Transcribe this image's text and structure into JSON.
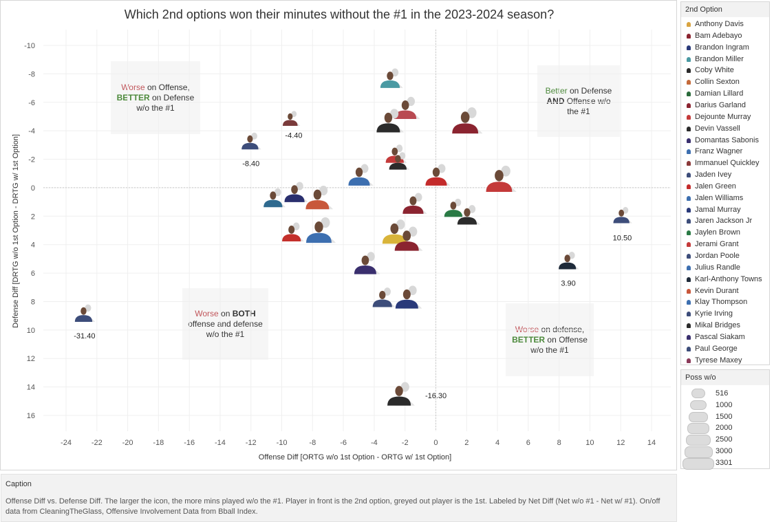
{
  "title": "Which 2nd options won their minutes without the #1 in the 2023-2024 season?",
  "chart_data": {
    "type": "scatter",
    "title": "Which 2nd options won their minutes without the #1 in the 2023-2024 season?",
    "xlabel": "Offense Diff [ORTG w/o 1st Option - ORTG w/ 1st Option]",
    "ylabel": "Defense Diff [DRTG w/o 1st Option - DRTG w/ 1st Option]",
    "xlim": [
      -24,
      14
    ],
    "ylim": [
      -10,
      16
    ],
    "y_reversed": true,
    "x_ticks": [
      -24,
      -22,
      -20,
      -18,
      -16,
      -14,
      -12,
      -10,
      -8,
      -6,
      -4,
      -2,
      0,
      2,
      4,
      6,
      8,
      10,
      12,
      14
    ],
    "y_ticks": [
      -10,
      -8,
      -6,
      -4,
      -2,
      0,
      2,
      4,
      6,
      8,
      10,
      12,
      14,
      16
    ],
    "grid": true,
    "marker": "player-headshot-icon",
    "points": [
      {
        "x": -2.9,
        "y": -7.6,
        "size": 1200,
        "color": "#4a9aa3"
      },
      {
        "x": -9.4,
        "y": -4.8,
        "size": 516,
        "color": "#7a3b3b",
        "label": "-4.40"
      },
      {
        "x": -12.0,
        "y": -3.2,
        "size": 800,
        "color": "#3d4d7a",
        "label": "-8.40"
      },
      {
        "x": -1.9,
        "y": -5.5,
        "size": 1600,
        "color": "#b94a52"
      },
      {
        "x": -3.0,
        "y": -4.6,
        "size": 1800,
        "color": "#2b2b2b"
      },
      {
        "x": 2.0,
        "y": -4.6,
        "size": 2200,
        "color": "#8b2430"
      },
      {
        "x": -2.6,
        "y": -2.3,
        "size": 1000,
        "color": "#c43a3a"
      },
      {
        "x": -2.4,
        "y": -1.8,
        "size": 900,
        "color": "#2b2b2b"
      },
      {
        "x": -4.9,
        "y": -0.8,
        "size": 1500,
        "color": "#3d6fb0"
      },
      {
        "x": 0.1,
        "y": -0.8,
        "size": 1500,
        "color": "#c42b2b"
      },
      {
        "x": 4.2,
        "y": -0.5,
        "size": 2200,
        "color": "#c43a3a"
      },
      {
        "x": -10.5,
        "y": 0.8,
        "size": 1100,
        "color": "#2f6a8f"
      },
      {
        "x": -9.1,
        "y": 0.4,
        "size": 1300,
        "color": "#2a2f6e"
      },
      {
        "x": -7.6,
        "y": 0.8,
        "size": 1800,
        "color": "#c8573a"
      },
      {
        "x": -1.4,
        "y": 1.2,
        "size": 1400,
        "color": "#8b2430"
      },
      {
        "x": 1.2,
        "y": 1.5,
        "size": 1000,
        "color": "#2a7a45"
      },
      {
        "x": 2.1,
        "y": 2.0,
        "size": 1200,
        "color": "#2b2b2b"
      },
      {
        "x": 12.1,
        "y": 2.0,
        "size": 700,
        "color": "#3d4d7a",
        "label": "10.50"
      },
      {
        "x": -9.3,
        "y": 3.2,
        "size": 1100,
        "color": "#c4302b"
      },
      {
        "x": -7.5,
        "y": 3.1,
        "size": 2100,
        "color": "#3d6fb0"
      },
      {
        "x": -2.6,
        "y": 3.2,
        "size": 1900,
        "color": "#d9b43a"
      },
      {
        "x": -1.8,
        "y": 3.7,
        "size": 1900,
        "color": "#8b2430"
      },
      {
        "x": 8.6,
        "y": 5.2,
        "size": 900,
        "color": "#1f2b3a",
        "label": "3.90"
      },
      {
        "x": -4.5,
        "y": 5.4,
        "size": 1600,
        "color": "#3a2f6e"
      },
      {
        "x": -3.4,
        "y": 7.8,
        "size": 1200,
        "color": "#3d4d7a"
      },
      {
        "x": -1.8,
        "y": 7.8,
        "size": 1700,
        "color": "#2a3a7a"
      },
      {
        "x": -22.8,
        "y": 8.9,
        "size": 900,
        "color": "#3d4d7a",
        "label": "-31.40"
      },
      {
        "x": -2.3,
        "y": 14.6,
        "size": 1800,
        "color": "#2b2b2b",
        "label": "-16.30"
      }
    ]
  },
  "quadrants": {
    "top_left": {
      "line1_worse": "Worse",
      "line1_rest": " on Offense,",
      "line2_better": "BETTER",
      "line2_rest": " on Defense",
      "line3": "w/o the #1"
    },
    "top_right": {
      "line1_better": "Better",
      "line1_rest": " on Defense",
      "line2_bold": "AND",
      "line2_rest": " Offense w/o",
      "line3": "the #1"
    },
    "bottom_left": {
      "line1_worse": "Worse",
      "line1_mid": " on ",
      "line1_bold": "BOTH",
      "line2": "offense and defense",
      "line3": "w/o the #1"
    },
    "bottom_right": {
      "line1_worse": "Worse",
      "line1_rest": " on defense,",
      "line2_better": "BETTER",
      "line2_rest": " on Offense",
      "line3": "w/o the #1"
    }
  },
  "legend": {
    "title": "2nd Option",
    "items": [
      {
        "name": "Anthony Davis",
        "color": "#d9a441"
      },
      {
        "name": "Bam Adebayo",
        "color": "#8b2430"
      },
      {
        "name": "Brandon Ingram",
        "color": "#2a3a7a"
      },
      {
        "name": "Brandon Miller",
        "color": "#4a9aa3"
      },
      {
        "name": "Coby White",
        "color": "#2b2b2b"
      },
      {
        "name": "Collin Sexton",
        "color": "#c46a3a"
      },
      {
        "name": "Damian Lillard",
        "color": "#2a6a3a"
      },
      {
        "name": "Darius Garland",
        "color": "#8b2430"
      },
      {
        "name": "Dejounte Murray",
        "color": "#c43a3a"
      },
      {
        "name": "Devin Vassell",
        "color": "#2b2b2b"
      },
      {
        "name": "Domantas Sabonis",
        "color": "#3a2f6e"
      },
      {
        "name": "Franz Wagner",
        "color": "#3d6fb0"
      },
      {
        "name": "Immanuel Quickley",
        "color": "#8b3a3a"
      },
      {
        "name": "Jaden Ivey",
        "color": "#3d4d7a"
      },
      {
        "name": "Jalen Green",
        "color": "#c42b2b"
      },
      {
        "name": "Jalen Williams",
        "color": "#3d6fb0"
      },
      {
        "name": "Jamal Murray",
        "color": "#2a3a7a"
      },
      {
        "name": "Jaren Jackson Jr",
        "color": "#3d4d7a"
      },
      {
        "name": "Jaylen Brown",
        "color": "#2a7a45"
      },
      {
        "name": "Jerami Grant",
        "color": "#c43a3a"
      },
      {
        "name": "Jordan Poole",
        "color": "#3d4d7a"
      },
      {
        "name": "Julius Randle",
        "color": "#3d6fb0"
      },
      {
        "name": "Karl-Anthony Towns",
        "color": "#1f2b3a"
      },
      {
        "name": "Kevin Durant",
        "color": "#c8573a"
      },
      {
        "name": "Klay Thompson",
        "color": "#3d6fb0"
      },
      {
        "name": "Kyrie Irving",
        "color": "#3d4d7a"
      },
      {
        "name": "Mikal Bridges",
        "color": "#2b2b2b"
      },
      {
        "name": "Pascal Siakam",
        "color": "#3a2f6e"
      },
      {
        "name": "Paul George",
        "color": "#3d4d7a"
      },
      {
        "name": "Tyrese Maxey",
        "color": "#8b3a5a"
      }
    ]
  },
  "size_legend": {
    "title": "Poss w/o",
    "items": [
      {
        "label": "516",
        "value": 516
      },
      {
        "label": "1000",
        "value": 1000
      },
      {
        "label": "1500",
        "value": 1500
      },
      {
        "label": "2000",
        "value": 2000
      },
      {
        "label": "2500",
        "value": 2500
      },
      {
        "label": "3000",
        "value": 3000
      },
      {
        "label": "3301",
        "value": 3301
      }
    ]
  },
  "caption": {
    "title": "Caption",
    "text": "Offense Diff vs. Defense Diff.  The larger the icon, the more mins played w/o the #1.  Player in front is the 2nd option, greyed out player is the 1st.  Labeled by Net Diff (Net w/o #1 - Net w/ #1). On/off data from CleaningTheGlass, Offensive Involvement Data from Bball Index."
  }
}
